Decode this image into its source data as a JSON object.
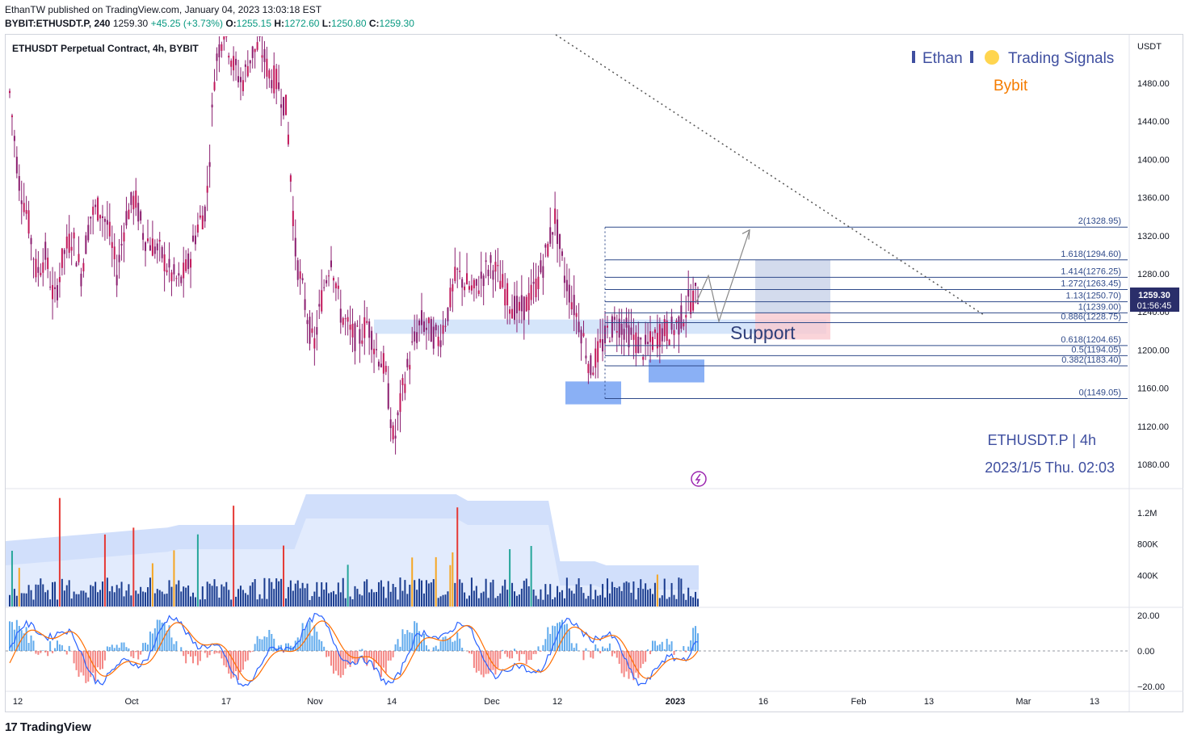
{
  "header": {
    "publisher": "EthanTW published on TradingView.com, January 04, 2023 13:03:18 EST",
    "symbol": "BYBIT:ETHUSDT.P, 240",
    "last": "1259.30",
    "change": "+45.25 (+3.73%)",
    "o_label": "O:",
    "o_val": "1255.15",
    "h_label": "H:",
    "h_val": "1272.60",
    "l_label": "L:",
    "l_val": "1250.80",
    "c_label": "C:",
    "c_val": "1259.30"
  },
  "chart_title": "ETHUSDT Perpetual Contract, 4h, BYBIT",
  "watermark": {
    "brand_left": "Ethan",
    "brand_right": "Trading Signals",
    "exchange": "Bybit",
    "pair": "ETHUSDT.P | 4h",
    "datetime": "2023/1/5 Thu. 02:03"
  },
  "support_label": "Support",
  "price_tag": {
    "price": "1259.30",
    "countdown": "01:56:45"
  },
  "footer_brand": "TradingView",
  "colors": {
    "candle": "#8b1e6f",
    "fib": "#2f4a8a",
    "zone": "#b3d0f5",
    "box_blue": "#6d9cf2",
    "target": "#c8d2e8",
    "stop": "#f9c9cf",
    "vol": "#1a3c8f",
    "vol_red": "#e53935",
    "vol_orange": "#f5a623",
    "vol_teal": "#26a69a",
    "macd_blue": "#2962ff",
    "macd_orange": "#ff6d00"
  },
  "chart_data": [
    {
      "type": "candlestick",
      "title": "ETHUSDT Perpetual Contract, 4h, BYBIT",
      "ylabel": "USDT",
      "y_ticks": [
        "1480.00",
        "1440.00",
        "1400.00",
        "1360.00",
        "1320.00",
        "1280.00",
        "1240.00",
        "1200.00",
        "1160.00",
        "1120.00",
        "1080.00"
      ],
      "x_ticks": [
        "12",
        "Oct",
        "17",
        "Nov",
        "14",
        "Dec",
        "12",
        "2023",
        "16",
        "Feb",
        "13",
        "Mar",
        "13"
      ],
      "ylim": [
        1060,
        1520
      ],
      "close_path": [
        1470,
        1380,
        1340,
        1280,
        1300,
        1250,
        1300,
        1320,
        1280,
        1340,
        1350,
        1330,
        1280,
        1340,
        1360,
        1320,
        1310,
        1300,
        1280,
        1270,
        1290,
        1330,
        1350,
        1500,
        1540,
        1500,
        1480,
        1510,
        1520,
        1490,
        1480,
        1450,
        1300,
        1250,
        1200,
        1260,
        1300,
        1240,
        1220,
        1210,
        1230,
        1200,
        1180,
        1100,
        1160,
        1200,
        1230,
        1220,
        1210,
        1240,
        1280,
        1270,
        1260,
        1280,
        1290,
        1270,
        1250,
        1240,
        1250,
        1270,
        1300,
        1340,
        1280,
        1250,
        1220,
        1180,
        1200,
        1220,
        1230,
        1220,
        1210,
        1200,
        1210,
        1220,
        1220,
        1230,
        1250,
        1259
      ],
      "fib_levels": [
        {
          "label": "2(1328.95)",
          "value": 1328.95
        },
        {
          "label": "1.618(1294.60)",
          "value": 1294.6
        },
        {
          "label": "1.414(1276.25)",
          "value": 1276.25
        },
        {
          "label": "1.272(1263.45)",
          "value": 1263.45
        },
        {
          "label": "1.13(1250.70)",
          "value": 1250.7
        },
        {
          "label": "1(1239.00)",
          "value": 1239.0
        },
        {
          "label": "0.886(1228.75)",
          "value": 1228.75
        },
        {
          "label": "0.618(1204.65)",
          "value": 1204.65
        },
        {
          "label": "0.5(1194.05)",
          "value": 1194.05
        },
        {
          "label": "0.382(1183.40)",
          "value": 1183.4
        },
        {
          "label": "0(1149.05)",
          "value": 1149.05
        }
      ],
      "support_zone": [
        1217,
        1232
      ],
      "last_price": 1259.3
    },
    {
      "type": "bar",
      "name": "Volume",
      "y_ticks": [
        "1.2M",
        "800K",
        "400K"
      ],
      "ylim": [
        0,
        1450000
      ]
    },
    {
      "type": "line",
      "name": "MACD",
      "y_ticks": [
        "20.00",
        "0.00",
        "−20.00"
      ],
      "ylim": [
        -22,
        25
      ]
    }
  ]
}
